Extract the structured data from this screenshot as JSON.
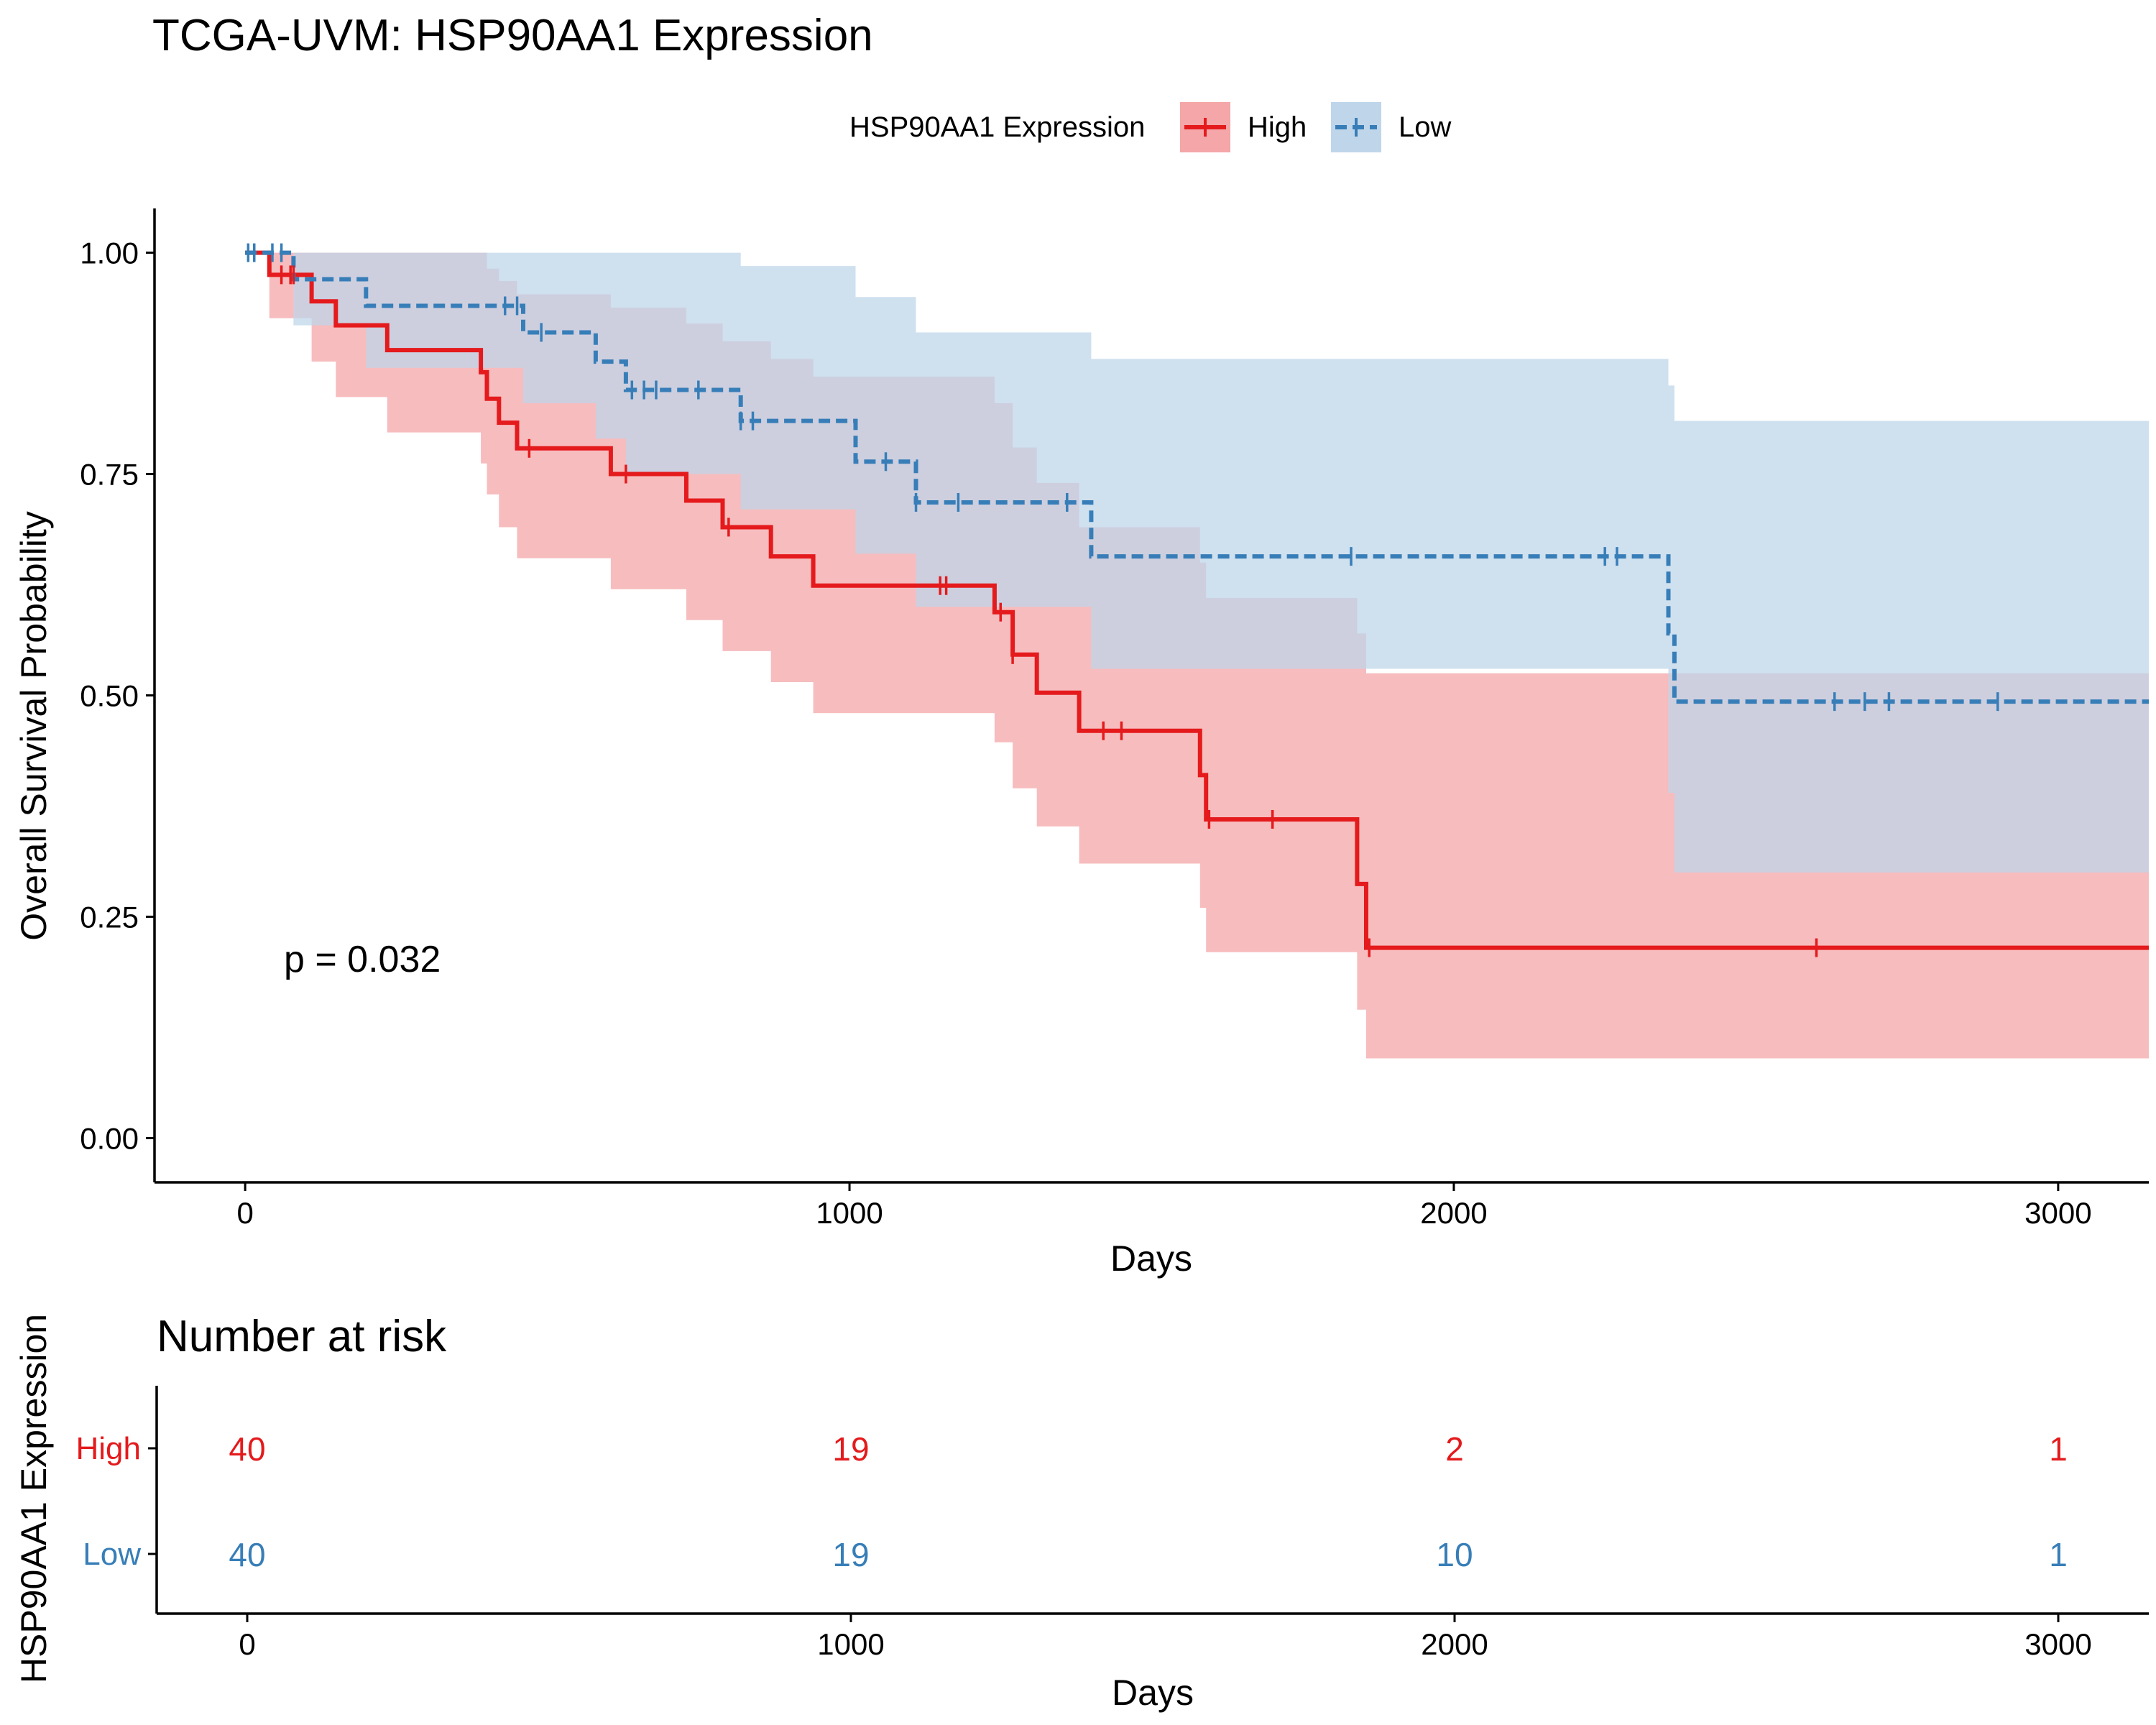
{
  "chart_data": [
    {
      "type": "line",
      "subtype": "kaplan-meier",
      "title": "TCGA-UVM: HSP90AA1 Expression",
      "xlabel": "Days",
      "ylabel": "Overall Survival Probability",
      "xlim": [
        -150,
        3150
      ],
      "ylim": [
        -0.05,
        1.05
      ],
      "x_ticks": [
        0,
        1000,
        2000,
        3000
      ],
      "x_tick_labels": [
        "0",
        "1000",
        "2000",
        "3000"
      ],
      "y_ticks": [
        0,
        0.25,
        0.5,
        0.75,
        1.0
      ],
      "y_tick_labels": [
        "0.00",
        "0.25",
        "0.50",
        "0.75",
        "1.00"
      ],
      "legend": {
        "title": "HSP90AA1 Expression",
        "position": "top"
      },
      "annotation": "p = 0.032",
      "series": [
        {
          "name": "High",
          "color": "#E41A1C",
          "band_color": "#F4A6A8",
          "line_style": "solid",
          "steps": [
            [
              0,
              1.0
            ],
            [
              40,
              0.975
            ],
            [
              110,
              0.945
            ],
            [
              150,
              0.918
            ],
            [
              235,
              0.89
            ],
            [
              390,
              0.865
            ],
            [
              400,
              0.835
            ],
            [
              420,
              0.808
            ],
            [
              450,
              0.779
            ],
            [
              605,
              0.75
            ],
            [
              730,
              0.72
            ],
            [
              790,
              0.69
            ],
            [
              870,
              0.657
            ],
            [
              940,
              0.624
            ],
            [
              1240,
              0.594
            ],
            [
              1270,
              0.546
            ],
            [
              1310,
              0.503
            ],
            [
              1380,
              0.46
            ],
            [
              1580,
              0.41
            ],
            [
              1590,
              0.36
            ],
            [
              1840,
              0.287
            ],
            [
              1855,
              0.215
            ],
            [
              3150,
              0.215
            ]
          ],
          "ci_upper": [
            [
              0,
              1.0
            ],
            [
              40,
              1.0
            ],
            [
              110,
              1.0
            ],
            [
              150,
              1.0
            ],
            [
              235,
              1.0
            ],
            [
              390,
              1.0
            ],
            [
              400,
              0.982
            ],
            [
              420,
              0.968
            ],
            [
              450,
              0.953
            ],
            [
              605,
              0.938
            ],
            [
              730,
              0.92
            ],
            [
              790,
              0.9
            ],
            [
              870,
              0.88
            ],
            [
              940,
              0.86
            ],
            [
              1240,
              0.83
            ],
            [
              1270,
              0.78
            ],
            [
              1310,
              0.74
            ],
            [
              1380,
              0.69
            ],
            [
              1580,
              0.65
            ],
            [
              1590,
              0.61
            ],
            [
              1840,
              0.57
            ],
            [
              1855,
              0.525
            ],
            [
              3150,
              0.525
            ]
          ],
          "ci_lower": [
            [
              0,
              1.0
            ],
            [
              40,
              0.926
            ],
            [
              110,
              0.877
            ],
            [
              150,
              0.837
            ],
            [
              235,
              0.797
            ],
            [
              390,
              0.762
            ],
            [
              400,
              0.727
            ],
            [
              420,
              0.69
            ],
            [
              450,
              0.655
            ],
            [
              605,
              0.62
            ],
            [
              730,
              0.585
            ],
            [
              790,
              0.55
            ],
            [
              870,
              0.515
            ],
            [
              940,
              0.48
            ],
            [
              1240,
              0.447
            ],
            [
              1270,
              0.395
            ],
            [
              1310,
              0.352
            ],
            [
              1380,
              0.31
            ],
            [
              1580,
              0.26
            ],
            [
              1590,
              0.21
            ],
            [
              1840,
              0.145
            ],
            [
              1855,
              0.09
            ],
            [
              3150,
              0.09
            ]
          ],
          "censor_x": [
            60,
            80,
            75,
            470,
            630,
            800,
            1150,
            1160,
            1250,
            1270,
            1420,
            1450,
            1595,
            1700,
            1860,
            2600
          ]
        },
        {
          "name": "Low",
          "color": "#377EB8",
          "band_color": "#BFD6EA",
          "line_style": "dashed",
          "steps": [
            [
              0,
              1.0
            ],
            [
              80,
              0.97
            ],
            [
              200,
              0.94
            ],
            [
              460,
              0.91
            ],
            [
              580,
              0.877
            ],
            [
              630,
              0.845
            ],
            [
              820,
              0.81
            ],
            [
              1010,
              0.764
            ],
            [
              1110,
              0.718
            ],
            [
              1400,
              0.657
            ],
            [
              2355,
              0.57
            ],
            [
              2365,
              0.493
            ],
            [
              3150,
              0.493
            ]
          ],
          "ci_upper": [
            [
              0,
              1.0
            ],
            [
              580,
              1.0
            ],
            [
              630,
              1.0
            ],
            [
              820,
              0.985
            ],
            [
              1010,
              0.95
            ],
            [
              1110,
              0.91
            ],
            [
              1400,
              0.88
            ],
            [
              2355,
              0.85
            ],
            [
              2365,
              0.81
            ],
            [
              3150,
              0.81
            ]
          ],
          "ci_lower": [
            [
              0,
              1.0
            ],
            [
              80,
              0.918
            ],
            [
              200,
              0.87
            ],
            [
              460,
              0.83
            ],
            [
              580,
              0.79
            ],
            [
              630,
              0.75
            ],
            [
              820,
              0.71
            ],
            [
              1010,
              0.66
            ],
            [
              1110,
              0.6
            ],
            [
              1400,
              0.53
            ],
            [
              2355,
              0.39
            ],
            [
              2365,
              0.3
            ],
            [
              3150,
              0.3
            ]
          ],
          "censor_x": [
            5,
            15,
            45,
            60,
            430,
            450,
            490,
            640,
            660,
            680,
            750,
            820,
            840,
            1060,
            1110,
            1180,
            1360,
            1830,
            2250,
            2270,
            2630,
            2680,
            2720,
            2900
          ]
        }
      ]
    },
    {
      "type": "table",
      "title": "Number at risk",
      "xlabel": "Days",
      "ylabel": "HSP90AA1 Expression",
      "xlim": [
        -150,
        3150
      ],
      "x_ticks": [
        0,
        1000,
        2000,
        3000
      ],
      "x_tick_labels": [
        "0",
        "1000",
        "2000",
        "3000"
      ],
      "rows": [
        {
          "name": "High",
          "color": "#E41A1C",
          "values": [
            "40",
            "19",
            "2",
            "1"
          ]
        },
        {
          "name": "Low",
          "color": "#377EB8",
          "values": [
            "40",
            "19",
            "10",
            "1"
          ]
        }
      ]
    }
  ]
}
